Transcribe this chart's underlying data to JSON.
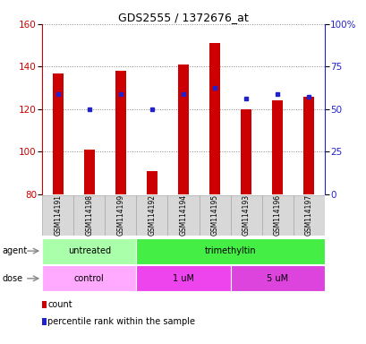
{
  "title": "GDS2555 / 1372676_at",
  "samples": [
    "GSM114191",
    "GSM114198",
    "GSM114199",
    "GSM114192",
    "GSM114194",
    "GSM114195",
    "GSM114193",
    "GSM114196",
    "GSM114197"
  ],
  "count_values": [
    137,
    101,
    138,
    91,
    141,
    151,
    120,
    124,
    126
  ],
  "percentile_values": [
    127,
    120,
    127,
    120,
    127,
    130,
    125,
    127,
    126
  ],
  "ylim_left": [
    80,
    160
  ],
  "ylim_right": [
    0,
    100
  ],
  "yticks_left": [
    80,
    100,
    120,
    140,
    160
  ],
  "yticks_right_vals": [
    0,
    25,
    50,
    75,
    100
  ],
  "yticks_right_labels": [
    "0",
    "25",
    "50",
    "75",
    "100%"
  ],
  "bar_color": "#cc0000",
  "dot_color": "#2222cc",
  "bar_bottom": 80,
  "bar_width": 0.35,
  "agent_groups": [
    {
      "label": "untreated",
      "start": 0,
      "end": 3,
      "color": "#aaffaa"
    },
    {
      "label": "trimethyltin",
      "start": 3,
      "end": 9,
      "color": "#44ee44"
    }
  ],
  "dose_groups": [
    {
      "label": "control",
      "start": 0,
      "end": 3,
      "color": "#ffaaff"
    },
    {
      "label": "1 uM",
      "start": 3,
      "end": 6,
      "color": "#ee44ee"
    },
    {
      "label": "5 uM",
      "start": 6,
      "end": 9,
      "color": "#dd44dd"
    }
  ],
  "legend_items": [
    {
      "label": "count",
      "color": "#cc0000"
    },
    {
      "label": "percentile rank within the sample",
      "color": "#2222cc"
    }
  ],
  "left_axis_color": "#cc0000",
  "right_axis_color": "#2222cc",
  "grid_color": "#888888",
  "sample_bg_color": "#d8d8d8",
  "sample_line_color": "#aaaaaa",
  "title_fontsize": 9,
  "tick_fontsize": 7.5,
  "sample_fontsize": 5.5,
  "group_fontsize": 7,
  "legend_fontsize": 7,
  "label_fontsize": 7
}
